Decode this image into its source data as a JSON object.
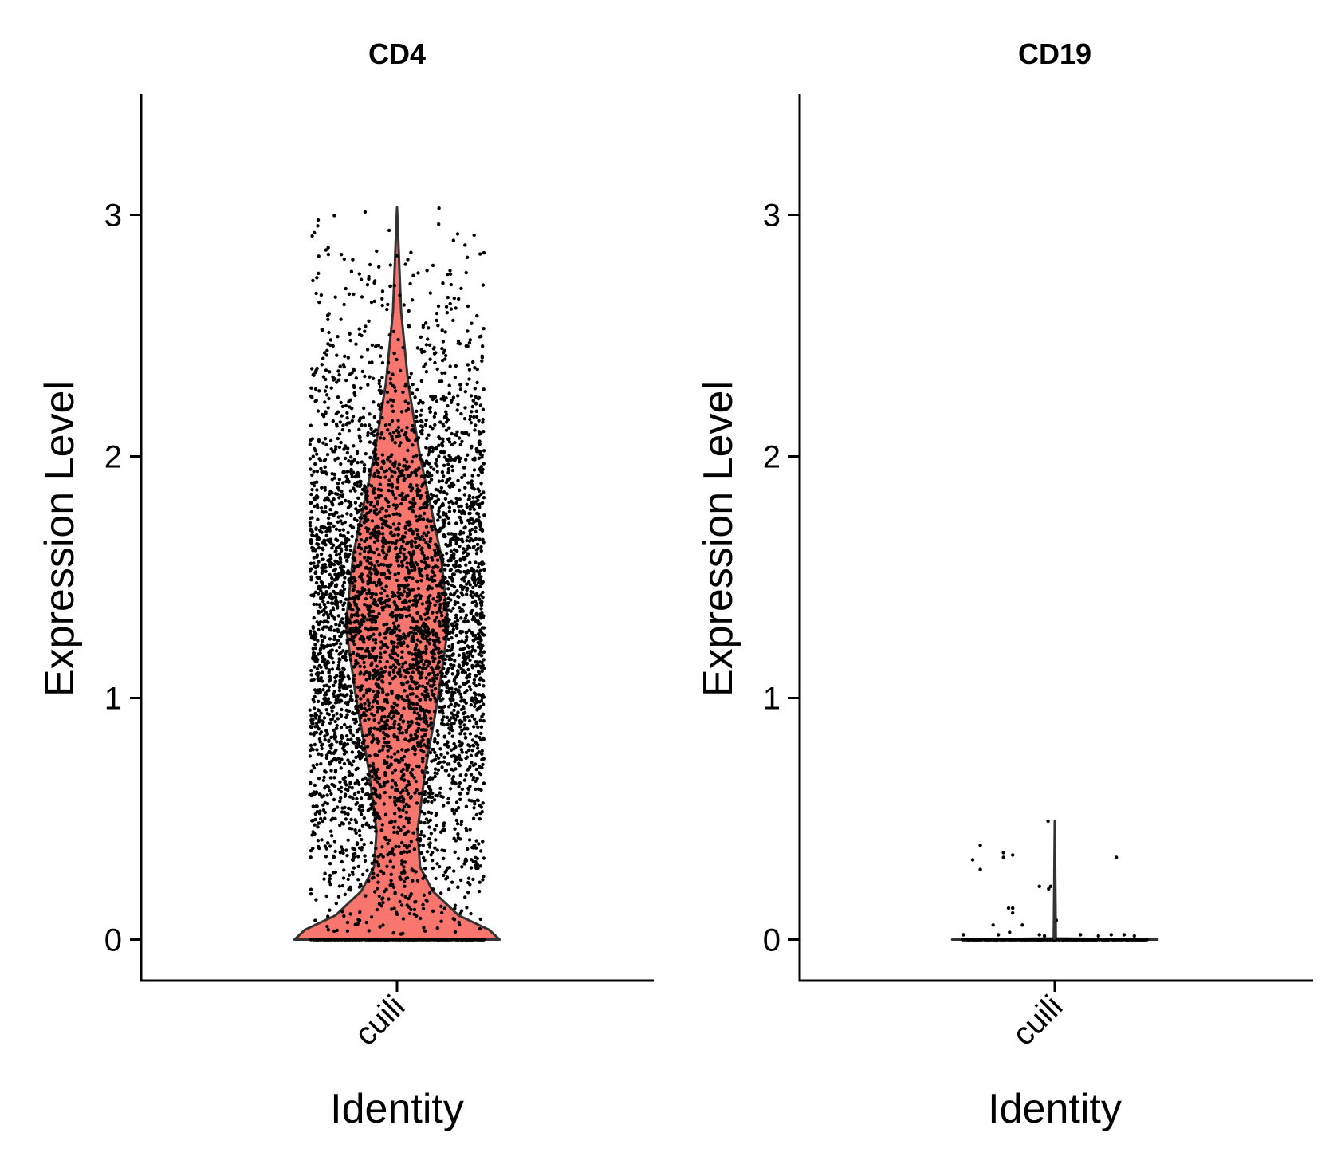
{
  "chart_data": [
    {
      "type": "violin",
      "title": "CD4",
      "xlabel": "Identity",
      "ylabel": "Expression Level",
      "categories": [
        "cuili"
      ],
      "ylim": [
        -0.17,
        3.5
      ],
      "yticks": [
        0,
        1,
        2,
        3
      ],
      "fill_color": "#F8766D",
      "outline_color": "#333333",
      "point_color": "#000000",
      "violin": {
        "max": 3.03,
        "density_profile": [
          {
            "y": 0.0,
            "half_width": 0.2
          },
          {
            "y": 0.04,
            "half_width": 0.18
          },
          {
            "y": 0.1,
            "half_width": 0.12
          },
          {
            "y": 0.2,
            "half_width": 0.07
          },
          {
            "y": 0.3,
            "half_width": 0.045
          },
          {
            "y": 0.45,
            "half_width": 0.04
          },
          {
            "y": 0.7,
            "half_width": 0.055
          },
          {
            "y": 1.0,
            "half_width": 0.08
          },
          {
            "y": 1.3,
            "half_width": 0.1
          },
          {
            "y": 1.6,
            "half_width": 0.085
          },
          {
            "y": 2.0,
            "half_width": 0.045
          },
          {
            "y": 2.3,
            "half_width": 0.022
          },
          {
            "y": 2.6,
            "half_width": 0.008
          },
          {
            "y": 3.03,
            "half_width": 0.0
          }
        ]
      },
      "points": {
        "n_at_zero": 500,
        "n_nonzero": 4600,
        "nonzero_range": [
          0.02,
          3.03
        ],
        "nonzero_mode": 1.3,
        "x_jitter": 0.17
      }
    },
    {
      "type": "violin",
      "title": "CD19",
      "xlabel": "Identity",
      "ylabel": "Expression Level",
      "categories": [
        "cuili"
      ],
      "ylim": [
        -0.17,
        3.5
      ],
      "yticks": [
        0,
        1,
        2,
        3
      ],
      "fill_color": "#F8766D",
      "outline_color": "#333333",
      "point_color": "#000000",
      "violin": {
        "max": 0.49,
        "density_profile": [
          {
            "y": 0.0,
            "half_width": 0.2
          },
          {
            "y": 0.005,
            "half_width": 0.002
          },
          {
            "y": 0.49,
            "half_width": 0.0
          }
        ]
      },
      "points": {
        "n_at_zero": 700,
        "nonzero_values": [
          {
            "x": -0.16,
            "y": 0.33
          },
          {
            "x": -0.145,
            "y": 0.39
          },
          {
            "x": -0.145,
            "y": 0.29
          },
          {
            "x": -0.1,
            "y": 0.36
          },
          {
            "x": -0.1,
            "y": 0.34
          },
          {
            "x": -0.082,
            "y": 0.35
          },
          {
            "x": -0.09,
            "y": 0.13
          },
          {
            "x": -0.082,
            "y": 0.13
          },
          {
            "x": -0.082,
            "y": 0.11
          },
          {
            "x": -0.12,
            "y": 0.06
          },
          {
            "x": -0.11,
            "y": 0.02
          },
          {
            "x": -0.088,
            "y": 0.03
          },
          {
            "x": -0.063,
            "y": 0.06
          },
          {
            "x": -0.013,
            "y": 0.49
          },
          {
            "x": -0.008,
            "y": 0.22
          },
          {
            "x": -0.03,
            "y": 0.22
          },
          {
            "x": -0.012,
            "y": 0.21
          },
          {
            "x": 0.003,
            "y": 0.08
          },
          {
            "x": 0.12,
            "y": 0.34
          },
          {
            "x": -0.178,
            "y": 0.02
          },
          {
            "x": 0.05,
            "y": 0.02
          },
          {
            "x": -0.02,
            "y": 0.015
          },
          {
            "x": 0.11,
            "y": 0.02
          },
          {
            "x": 0.135,
            "y": 0.02
          },
          {
            "x": 0.155,
            "y": 0.015
          },
          {
            "x": 0.085,
            "y": 0.015
          },
          {
            "x": -0.03,
            "y": 0.02
          }
        ],
        "x_jitter": 0.18
      }
    }
  ]
}
